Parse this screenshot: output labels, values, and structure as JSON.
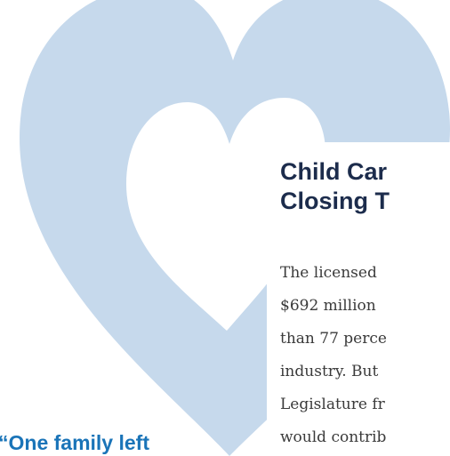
{
  "article": {
    "heading": [
      "Child Car",
      "Closing T"
    ],
    "body": [
      "The licensed",
      "$692 million",
      "than 77 perce",
      "industry. But",
      "Legislature fr",
      "would contrib"
    ]
  },
  "pull_quote": "“One family left"
}
